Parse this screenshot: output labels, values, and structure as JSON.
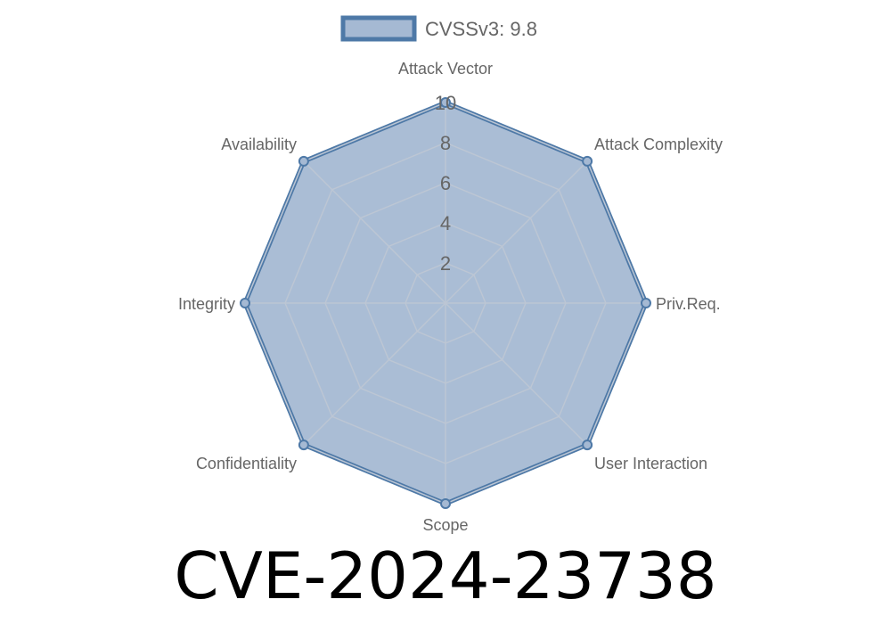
{
  "chart_data": {
    "type": "radar",
    "title": "",
    "axes": [
      "Attack Vector",
      "Attack Complexity",
      "Priv.Req.",
      "User Interaction",
      "Scope",
      "Confidentiality",
      "Integrity",
      "Availability"
    ],
    "series": [
      {
        "name": "CVSSv3: 9.8",
        "values": [
          10,
          10,
          10,
          10,
          10,
          10,
          10,
          10
        ]
      }
    ],
    "rlim": [
      0,
      10
    ],
    "ticks": [
      "2",
      "4",
      "6",
      "8",
      "10"
    ],
    "tick_values": [
      2,
      4,
      6,
      8,
      10
    ],
    "grid": true,
    "legend_position": "top",
    "colors": {
      "stroke": "#4e79a7",
      "fill": "#a5b9d3",
      "grid": "#c8ccd2"
    }
  },
  "caption": "CVE-2024-23738"
}
